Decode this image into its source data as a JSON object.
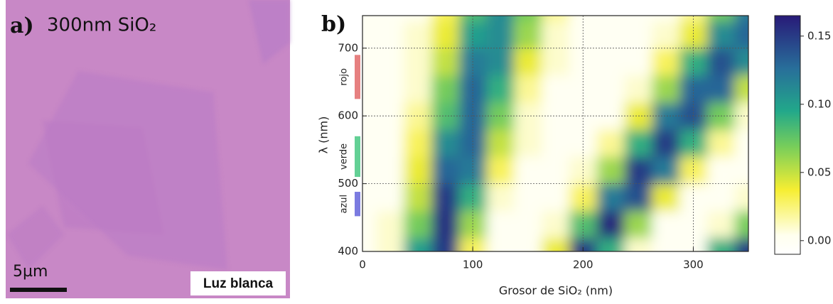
{
  "panel_a": {
    "label": "a)",
    "caption": "300nm SiO₂",
    "scale_bar": "5µm",
    "illumination": "Luz blanca"
  },
  "chart_data": {
    "type": "heatmap",
    "label": "b)",
    "xlabel": "Grosor de SiO₂ (nm)",
    "ylabel": "λ (nm)",
    "xlim": [
      0,
      350
    ],
    "ylim": [
      400,
      748
    ],
    "xticks": [
      0,
      100,
      200,
      300
    ],
    "yticks": [
      400,
      500,
      600,
      700
    ],
    "grid": true,
    "x": [
      0,
      25,
      50,
      75,
      100,
      125,
      150,
      175,
      200,
      225,
      250,
      275,
      300,
      325,
      350
    ],
    "y": [
      400,
      440,
      480,
      520,
      560,
      600,
      640,
      680,
      720,
      760
    ],
    "z": [
      [
        0.0,
        0.01,
        0.1,
        0.15,
        0.03,
        0.0,
        0.0,
        0.04,
        0.15,
        0.09,
        0.01,
        0.0,
        0.0,
        0.09,
        0.15
      ],
      [
        0.0,
        0.01,
        0.07,
        0.155,
        0.06,
        0.0,
        0.0,
        0.01,
        0.08,
        0.16,
        0.06,
        0.0,
        0.0,
        0.01,
        0.07
      ],
      [
        0.0,
        0.0,
        0.05,
        0.15,
        0.09,
        0.01,
        0.0,
        0.0,
        0.03,
        0.12,
        0.14,
        0.04,
        0.0,
        0.0,
        0.01
      ],
      [
        0.0,
        0.0,
        0.04,
        0.13,
        0.12,
        0.03,
        0.0,
        0.0,
        0.01,
        0.06,
        0.15,
        0.12,
        0.03,
        0.0,
        0.0
      ],
      [
        0.0,
        0.0,
        0.03,
        0.11,
        0.13,
        0.05,
        0.01,
        0.0,
        0.0,
        0.02,
        0.09,
        0.15,
        0.09,
        0.02,
        0.0
      ],
      [
        0.0,
        0.0,
        0.02,
        0.08,
        0.13,
        0.07,
        0.01,
        0.0,
        0.0,
        0.0,
        0.04,
        0.12,
        0.14,
        0.07,
        0.01
      ],
      [
        0.0,
        0.0,
        0.01,
        0.07,
        0.13,
        0.09,
        0.02,
        0.0,
        0.0,
        0.0,
        0.01,
        0.06,
        0.13,
        0.13,
        0.05
      ],
      [
        0.0,
        0.0,
        0.01,
        0.05,
        0.12,
        0.11,
        0.04,
        0.01,
        0.0,
        0.0,
        0.0,
        0.03,
        0.09,
        0.14,
        0.11
      ],
      [
        0.0,
        0.0,
        0.01,
        0.04,
        0.1,
        0.11,
        0.06,
        0.01,
        0.0,
        0.0,
        0.0,
        0.01,
        0.04,
        0.11,
        0.13
      ],
      [
        0.0,
        0.0,
        0.0,
        0.03,
        0.08,
        0.11,
        0.07,
        0.02,
        0.0,
        0.0,
        0.0,
        0.0,
        0.02,
        0.07,
        0.12
      ]
    ],
    "clim": [
      -0.01,
      0.165
    ],
    "cticks": [
      {
        "value": 0,
        "label": "0.00"
      },
      {
        "value": 0.05,
        "label": "0.05"
      },
      {
        "value": 0.1,
        "label": "0.10"
      },
      {
        "value": 0.15,
        "label": "0.15"
      }
    ],
    "bands": [
      {
        "label": "rojo",
        "range": [
          625,
          690
        ],
        "color": "#e06060"
      },
      {
        "label": "verde",
        "range": [
          510,
          570
        ],
        "color": "#3cc47a"
      },
      {
        "label": "azul",
        "range": [
          452,
          488
        ],
        "color": "#5a5ad8"
      }
    ]
  }
}
